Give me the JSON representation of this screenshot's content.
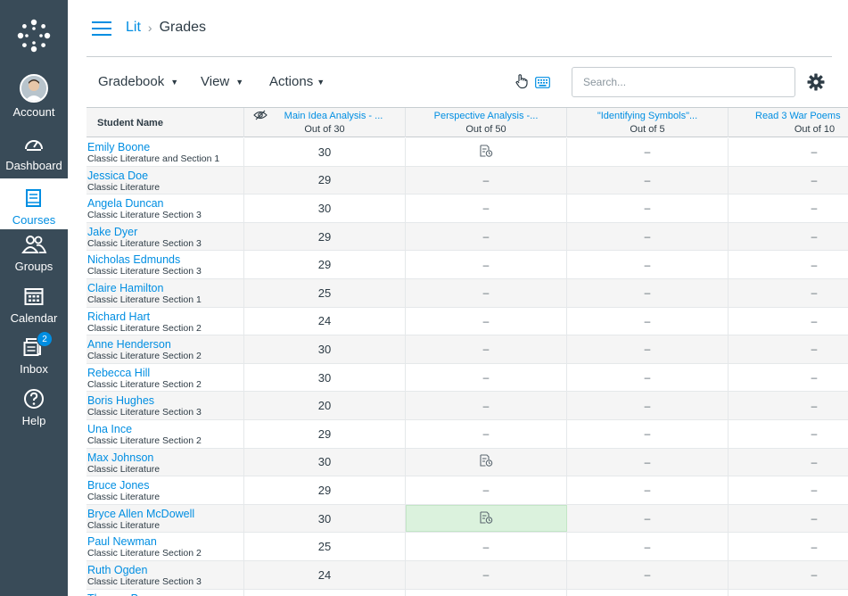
{
  "nav": {
    "items": [
      {
        "label": "Account",
        "icon": "avatar"
      },
      {
        "label": "Dashboard",
        "icon": "dashboard-icon"
      },
      {
        "label": "Courses",
        "icon": "courses-icon"
      },
      {
        "label": "Groups",
        "icon": "groups-icon"
      },
      {
        "label": "Calendar",
        "icon": "calendar-icon"
      },
      {
        "label": "Inbox",
        "icon": "inbox-icon",
        "badge": "2"
      },
      {
        "label": "Help",
        "icon": "help-icon"
      }
    ],
    "accent": "#008ee2",
    "background": "#394b58"
  },
  "breadcrumb": {
    "course": "Lit",
    "current": "Grades"
  },
  "toolbar": {
    "gradebook_label": "Gradebook",
    "view_label": "View",
    "actions_label": "Actions",
    "search_placeholder": "Search..."
  },
  "grid": {
    "name_header": "Student Name",
    "columns": [
      {
        "title": "Main Idea Analysis - ...",
        "points": "Out of 30",
        "muted": true
      },
      {
        "title": "Perspective Analysis -...",
        "points": "Out of 50"
      },
      {
        "title": "\"Identifying Symbols\"...",
        "points": "Out of 5"
      },
      {
        "title": "Read 3 War Poems",
        "points": "Out of 10"
      }
    ],
    "rows": [
      {
        "name": "Emily Boone",
        "section": "Classic Literature and Section 1",
        "scores": [
          "30",
          "submitted",
          "–",
          "–"
        ]
      },
      {
        "name": "Jessica Doe",
        "section": "Classic Literature",
        "scores": [
          "29",
          "–",
          "–",
          "–"
        ]
      },
      {
        "name": "Angela Duncan",
        "section": "Classic Literature Section 3",
        "scores": [
          "30",
          "–",
          "–",
          "–"
        ]
      },
      {
        "name": "Jake Dyer",
        "section": "Classic Literature Section 3",
        "scores": [
          "29",
          "–",
          "–",
          "–"
        ]
      },
      {
        "name": "Nicholas Edmunds",
        "section": "Classic Literature Section 3",
        "scores": [
          "29",
          "–",
          "–",
          "–"
        ]
      },
      {
        "name": "Claire Hamilton",
        "section": "Classic Literature Section 1",
        "scores": [
          "25",
          "–",
          "–",
          "–"
        ]
      },
      {
        "name": "Richard Hart",
        "section": "Classic Literature Section 2",
        "scores": [
          "24",
          "–",
          "–",
          "–"
        ]
      },
      {
        "name": "Anne Henderson",
        "section": "Classic Literature Section 2",
        "scores": [
          "30",
          "–",
          "–",
          "–"
        ]
      },
      {
        "name": "Rebecca Hill",
        "section": "Classic Literature Section 2",
        "scores": [
          "30",
          "–",
          "–",
          "–"
        ]
      },
      {
        "name": "Boris Hughes",
        "section": "Classic Literature Section 3",
        "scores": [
          "20",
          "–",
          "–",
          "–"
        ]
      },
      {
        "name": "Una Ince",
        "section": "Classic Literature Section 2",
        "scores": [
          "29",
          "–",
          "–",
          "–"
        ]
      },
      {
        "name": "Max Johnson",
        "section": "Classic Literature",
        "scores": [
          "30",
          "submitted",
          "–",
          "–"
        ]
      },
      {
        "name": "Bruce Jones",
        "section": "Classic Literature",
        "scores": [
          "29",
          "–",
          "–",
          "–"
        ]
      },
      {
        "name": "Bryce Allen McDowell",
        "section": "Classic Literature",
        "scores": [
          "30",
          "submitted",
          "–",
          "–"
        ],
        "selected_col": 1
      },
      {
        "name": "Paul Newman",
        "section": "Classic Literature Section 2",
        "scores": [
          "25",
          "–",
          "–",
          "–"
        ]
      },
      {
        "name": "Ruth Ogden",
        "section": "Classic Literature Section 3",
        "scores": [
          "24",
          "–",
          "–",
          "–"
        ]
      },
      {
        "name": "Thomas P...",
        "section": "",
        "scores": [
          "",
          "",
          "",
          ""
        ]
      }
    ]
  }
}
